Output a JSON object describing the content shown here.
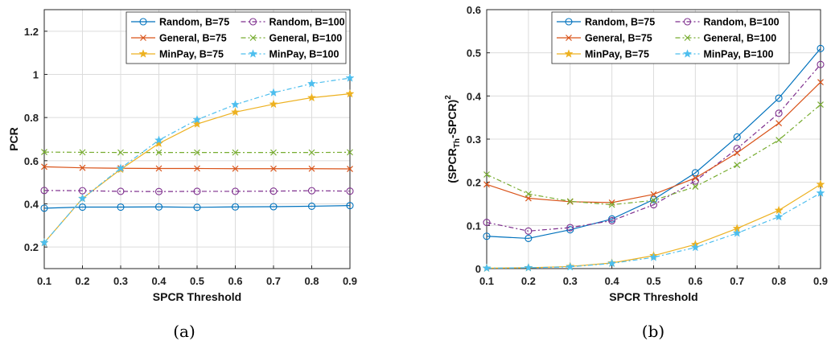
{
  "chart_data": [
    {
      "type": "line",
      "sublabel": "(a)",
      "xlabel": "SPCR Threshold",
      "ylabel": "PCR",
      "xlim": [
        0.1,
        0.9
      ],
      "ylim": [
        0.1,
        1.3
      ],
      "x": [
        0.1,
        0.2,
        0.3,
        0.4,
        0.5,
        0.6,
        0.7,
        0.8,
        0.9
      ],
      "xticks": [
        "0.1",
        "0.2",
        "0.3",
        "0.4",
        "0.5",
        "0.6",
        "0.7",
        "0.8",
        "0.9"
      ],
      "yticks": [
        {
          "v": 0.2,
          "label": "0.2"
        },
        {
          "v": 0.4,
          "label": "0.4"
        },
        {
          "v": 0.6,
          "label": "0.6"
        },
        {
          "v": 0.8,
          "label": "0.8"
        },
        {
          "v": 1.0,
          "label": "1"
        },
        {
          "v": 1.2,
          "label": "1.2"
        }
      ],
      "grid": true,
      "legend_position": "top-right",
      "series": [
        {
          "name": "Random, B=75",
          "values": [
            0.38,
            0.385,
            0.385,
            0.386,
            0.384,
            0.386,
            0.387,
            0.389,
            0.392
          ]
        },
        {
          "name": "Random, B=100",
          "values": [
            0.462,
            0.461,
            0.458,
            0.457,
            0.458,
            0.458,
            0.459,
            0.461,
            0.459
          ]
        },
        {
          "name": "General, B=75",
          "values": [
            0.572,
            0.567,
            0.565,
            0.564,
            0.564,
            0.563,
            0.563,
            0.563,
            0.562
          ]
        },
        {
          "name": "General, B=100",
          "values": [
            0.64,
            0.639,
            0.638,
            0.638,
            0.638,
            0.638,
            0.638,
            0.638,
            0.639
          ]
        },
        {
          "name": "MinPay, B=75",
          "values": [
            0.22,
            0.425,
            0.56,
            0.68,
            0.77,
            0.825,
            0.862,
            0.892,
            0.91
          ]
        },
        {
          "name": "MinPay, B=100",
          "values": [
            0.22,
            0.425,
            0.565,
            0.695,
            0.79,
            0.86,
            0.915,
            0.957,
            0.983
          ]
        }
      ]
    },
    {
      "type": "line",
      "sublabel": "(b)",
      "xlabel": "SPCR Threshold",
      "ylabel": "(SPCR",
      "ylabel_sub": "Th",
      "ylabel_tail": "-SPCR)",
      "ylabel_sup": "2",
      "xlim": [
        0.1,
        0.9
      ],
      "ylim": [
        0,
        0.6
      ],
      "x": [
        0.1,
        0.2,
        0.3,
        0.4,
        0.5,
        0.6,
        0.7,
        0.8,
        0.9
      ],
      "xticks": [
        "0.1",
        "0.2",
        "0.3",
        "0.4",
        "0.5",
        "0.6",
        "0.7",
        "0.8",
        "0.9"
      ],
      "yticks": [
        {
          "v": 0,
          "label": "0"
        },
        {
          "v": 0.1,
          "label": "0.1"
        },
        {
          "v": 0.2,
          "label": "0.2"
        },
        {
          "v": 0.3,
          "label": "0.3"
        },
        {
          "v": 0.4,
          "label": "0.4"
        },
        {
          "v": 0.5,
          "label": "0.5"
        },
        {
          "v": 0.6,
          "label": "0.6"
        }
      ],
      "grid": true,
      "legend_position": "top-left",
      "series": [
        {
          "name": "Random, B=75",
          "values": [
            0.075,
            0.07,
            0.09,
            0.115,
            0.16,
            0.222,
            0.305,
            0.395,
            0.51
          ]
        },
        {
          "name": "Random, B=100",
          "values": [
            0.107,
            0.087,
            0.095,
            0.111,
            0.148,
            0.203,
            0.278,
            0.36,
            0.473
          ]
        },
        {
          "name": "General, B=75",
          "values": [
            0.195,
            0.163,
            0.155,
            0.153,
            0.172,
            0.21,
            0.268,
            0.337,
            0.432
          ]
        },
        {
          "name": "General, B=100",
          "values": [
            0.218,
            0.173,
            0.156,
            0.148,
            0.158,
            0.19,
            0.24,
            0.298,
            0.38
          ]
        },
        {
          "name": "MinPay, B=75",
          "values": [
            0.001,
            0.002,
            0.005,
            0.013,
            0.03,
            0.056,
            0.093,
            0.135,
            0.195
          ]
        },
        {
          "name": "MinPay, B=100",
          "values": [
            0.001,
            0.002,
            0.004,
            0.012,
            0.026,
            0.049,
            0.082,
            0.12,
            0.175
          ]
        }
      ]
    }
  ],
  "styles": [
    {
      "color": "#0072BD",
      "dash": "",
      "marker": "circle"
    },
    {
      "color": "#7E2F8E",
      "dash": "6,3,2,3",
      "marker": "circle"
    },
    {
      "color": "#D95319",
      "dash": "",
      "marker": "x"
    },
    {
      "color": "#77AC30",
      "dash": "6,3,2,3",
      "marker": "x"
    },
    {
      "color": "#EDB120",
      "dash": "",
      "marker": "star"
    },
    {
      "color": "#4DBEEE",
      "dash": "6,3,2,3",
      "marker": "star"
    }
  ]
}
